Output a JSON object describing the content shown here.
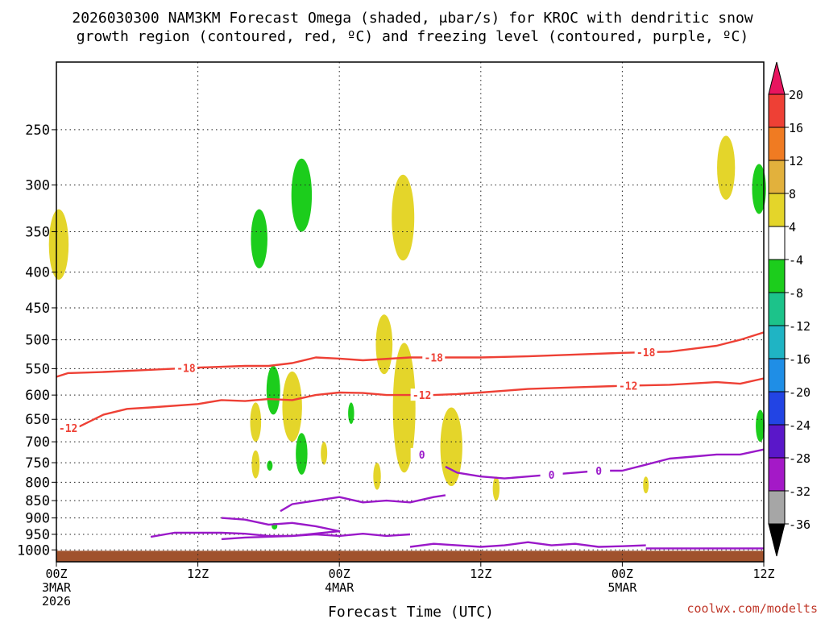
{
  "chart_data": {
    "type": "heatmap",
    "title_line1": "2026030300 NAM3KM Forecast Omega (shaded, μbar/s) for KROC with dendritic snow",
    "title_line2": "growth region (contoured, red, ºC) and freezing level (contoured, purple, ºC)",
    "xlabel": "Forecast Time (UTC)",
    "credit": "coolwx.com/modelts",
    "y_unit": "hPa",
    "ylim": [
      1040,
      200
    ],
    "y_ticks": [
      250,
      300,
      350,
      400,
      450,
      500,
      550,
      600,
      650,
      700,
      750,
      800,
      850,
      900,
      950,
      1000
    ],
    "x_range_hours": [
      0,
      60
    ],
    "x_ticks": [
      {
        "hour": 0,
        "label": "00Z",
        "sub1": "3MAR",
        "sub2": "2026"
      },
      {
        "hour": 12,
        "label": "12Z",
        "sub1": "",
        "sub2": ""
      },
      {
        "hour": 24,
        "label": "00Z",
        "sub1": "4MAR",
        "sub2": ""
      },
      {
        "hour": 36,
        "label": "12Z",
        "sub1": "",
        "sub2": ""
      },
      {
        "hour": 48,
        "label": "00Z",
        "sub1": "5MAR",
        "sub2": ""
      },
      {
        "hour": 60,
        "label": "12Z",
        "sub1": "",
        "sub2": ""
      }
    ],
    "colorbar": {
      "labels": [
        "20",
        "16",
        "12",
        "8",
        "4",
        "-4",
        "-8",
        "-12",
        "-16",
        "-20",
        "-24",
        "-28",
        "-32",
        "-36"
      ],
      "colors": [
        "#e8155f",
        "#ee4035",
        "#f07b22",
        "#e2b13c",
        "#e4d52a",
        "#ffffff",
        "#1ccd1c",
        "#1cc38a",
        "#1fb4c4",
        "#1f8ee6",
        "#2244e4",
        "#5a17c9",
        "#a419c7",
        "#a6a6a6",
        "#000000"
      ]
    },
    "series": [
      {
        "name": "-18C isotherm",
        "label": "-18",
        "color": "#ee4035",
        "x": [
          0,
          1,
          4,
          8,
          12,
          16,
          18,
          20,
          22,
          24,
          26,
          30,
          32,
          34,
          36,
          40,
          44,
          48,
          52,
          54,
          56,
          58,
          60
        ],
        "y": [
          565,
          558,
          556,
          552,
          548,
          545,
          545,
          540,
          530,
          532,
          535,
          530,
          530,
          530,
          530,
          528,
          525,
          522,
          520,
          515,
          510,
          500,
          488
        ]
      },
      {
        "name": "-12C isotherm",
        "label": "-12",
        "color": "#ee4035",
        "x": [
          0,
          2,
          4,
          6,
          8,
          12,
          14,
          16,
          18,
          20,
          22,
          24,
          26,
          28,
          30,
          32,
          34,
          36,
          40,
          44,
          48,
          52,
          56,
          58,
          60
        ],
        "y": [
          672,
          665,
          640,
          628,
          625,
          618,
          610,
          612,
          608,
          610,
          600,
          595,
          596,
          600,
          600,
          600,
          598,
          595,
          588,
          585,
          582,
          580,
          575,
          578,
          568
        ]
      },
      {
        "name": "0C freezing level",
        "label": "0",
        "color": "#9a19c9",
        "x": [
          33,
          34,
          36,
          38,
          40,
          42,
          44,
          46,
          48,
          50,
          52,
          54,
          56,
          58,
          60
        ],
        "y": [
          760,
          775,
          785,
          790,
          785,
          780,
          775,
          770,
          770,
          755,
          740,
          735,
          730,
          730,
          718
        ]
      }
    ],
    "shaded_regions": [
      {
        "omega": 5,
        "hour": 0.2,
        "p_top": 325,
        "p_bot": 410
      },
      {
        "omega": -6,
        "hour": 17.2,
        "p_top": 325,
        "p_bot": 395
      },
      {
        "omega": -6,
        "hour": 20.8,
        "p_top": 275,
        "p_bot": 350
      },
      {
        "omega": 5,
        "hour": 29.4,
        "p_top": 290,
        "p_bot": 385
      },
      {
        "omega": 5,
        "hour": 27.8,
        "p_top": 460,
        "p_bot": 560
      },
      {
        "omega": 5,
        "hour": 29.5,
        "p_top": 505,
        "p_bot": 775
      },
      {
        "omega": 5,
        "hour": 33.5,
        "p_top": 625,
        "p_bot": 810
      },
      {
        "omega": -6,
        "hour": 18.4,
        "p_top": 545,
        "p_bot": 640
      },
      {
        "omega": 5,
        "hour": 20.0,
        "p_top": 555,
        "p_bot": 700
      },
      {
        "omega": 5,
        "hour": 16.9,
        "p_top": 615,
        "p_bot": 700
      },
      {
        "omega": -6,
        "hour": 20.8,
        "p_top": 680,
        "p_bot": 780
      },
      {
        "omega": 5,
        "hour": 22.7,
        "p_top": 700,
        "p_bot": 755
      },
      {
        "omega": -6,
        "hour": 25.0,
        "p_top": 615,
        "p_bot": 660
      },
      {
        "omega": 5,
        "hour": 16.9,
        "p_top": 720,
        "p_bot": 790
      },
      {
        "omega": -6,
        "hour": 18.1,
        "p_top": 745,
        "p_bot": 770
      },
      {
        "omega": 5,
        "hour": 27.2,
        "p_top": 750,
        "p_bot": 820
      },
      {
        "omega": 5,
        "hour": 37.3,
        "p_top": 785,
        "p_bot": 850
      },
      {
        "omega": 5,
        "hour": 50.0,
        "p_top": 785,
        "p_bot": 830
      },
      {
        "omega": 5,
        "hour": 56.8,
        "p_top": 255,
        "p_bot": 315
      },
      {
        "omega": -6,
        "hour": 59.6,
        "p_top": 280,
        "p_bot": 330
      },
      {
        "omega": -6,
        "hour": 59.7,
        "p_top": 630,
        "p_bot": 700
      },
      {
        "omega": -6,
        "hour": 18.5,
        "p_top": 915,
        "p_bot": 935
      }
    ]
  }
}
